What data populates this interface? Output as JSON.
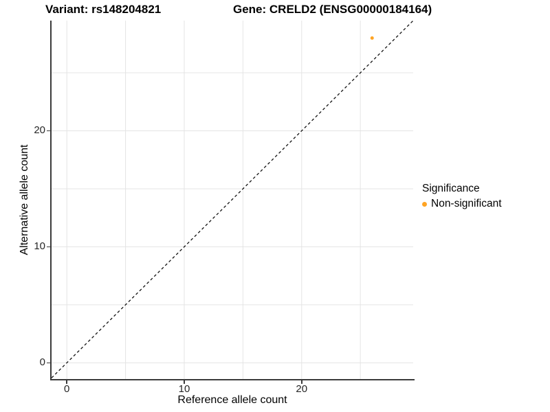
{
  "titles": {
    "variant": "Variant: rs148204821",
    "gene": "Gene: CRELD2 (ENSG00000184164)"
  },
  "x_axis": {
    "label": "Reference allele count"
  },
  "y_axis": {
    "label": "Alternative allele count"
  },
  "legend": {
    "title": "Significance",
    "items": [
      {
        "label": "Non-significant",
        "color": "#FFA424"
      }
    ]
  },
  "chart_data": {
    "type": "scatter",
    "title": "Variant: rs148204821 | Gene: CRELD2 (ENSG00000184164)",
    "xlabel": "Reference allele count",
    "ylabel": "Alternative allele count",
    "xlim": [
      -1.3,
      29.5
    ],
    "ylim": [
      -1.4,
      29.5
    ],
    "x_ticks": [
      0,
      10,
      20
    ],
    "y_ticks": [
      0,
      10,
      20
    ],
    "grid_x": [
      0,
      5,
      10,
      15,
      20,
      25
    ],
    "grid_y": [
      0,
      5,
      10,
      15,
      20,
      25
    ],
    "grid_color": "#E4E4E4",
    "grid": true,
    "legend_title": "Significance",
    "legend_position": "right",
    "reference_line": {
      "type": "identity",
      "equation": "y = x",
      "style": "dashed",
      "color": "#111111"
    },
    "series": [
      {
        "name": "Non-significant",
        "color": "#FFA424",
        "point_radius": 2.5,
        "points": [
          {
            "x": 26,
            "y": 28
          }
        ]
      }
    ]
  }
}
